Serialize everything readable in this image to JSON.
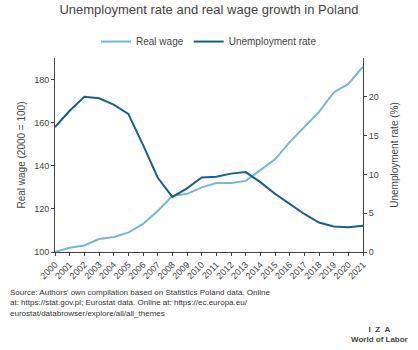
{
  "chart_data": {
    "type": "line",
    "title": "Unemployment rate and real wage growth in Poland",
    "x": [
      2000,
      2001,
      2002,
      2003,
      2004,
      2005,
      2006,
      2007,
      2008,
      2009,
      2010,
      2011,
      2012,
      2013,
      2014,
      2015,
      2016,
      2017,
      2018,
      2019,
      2020,
      2021
    ],
    "series": [
      {
        "name": "Real wage",
        "color": "#74b9d4",
        "values": [
          100,
          102,
          103,
          106,
          107,
          109,
          113,
          119,
          126,
          127,
          130,
          132,
          132,
          133,
          138,
          143,
          151,
          158,
          165,
          174,
          178,
          186
        ]
      },
      {
        "name": "Unemployment rate",
        "color": "#1a5e8a",
        "axis": "y2",
        "values": [
          16.1,
          18.2,
          20.0,
          19.8,
          19.0,
          17.8,
          13.8,
          9.6,
          7.1,
          8.2,
          9.6,
          9.7,
          10.1,
          10.3,
          9.0,
          7.5,
          6.2,
          4.9,
          3.8,
          3.3,
          3.2,
          3.4
        ]
      }
    ],
    "ylabel": "Real wage (2000 = 100)",
    "y2label": "Unemployment rate (%)",
    "xlim": [
      2000,
      2021
    ],
    "xticks": [
      2000,
      2001,
      2002,
      2003,
      2004,
      2005,
      2006,
      2007,
      2008,
      2009,
      2010,
      2011,
      2012,
      2013,
      2014,
      2015,
      2016,
      2017,
      2018,
      2019,
      2020,
      2021
    ],
    "ylim": [
      100,
      190
    ],
    "yticks": [
      100,
      120,
      140,
      160,
      180
    ],
    "y2lim": [
      0,
      25
    ],
    "y2ticks": [
      0,
      5,
      10,
      15,
      20
    ],
    "grid": false,
    "legend": "top",
    "annotations": [
      "Source: Authors' own compilation based on Statistics Poland data. Online\nat: https://stat.gov.pl; Eurostat data. Online at: https://ec.europa.eu/\neurostat/databrowser/explore/all/all_themes",
      "I  Z  A\nWorld of Labor"
    ]
  }
}
